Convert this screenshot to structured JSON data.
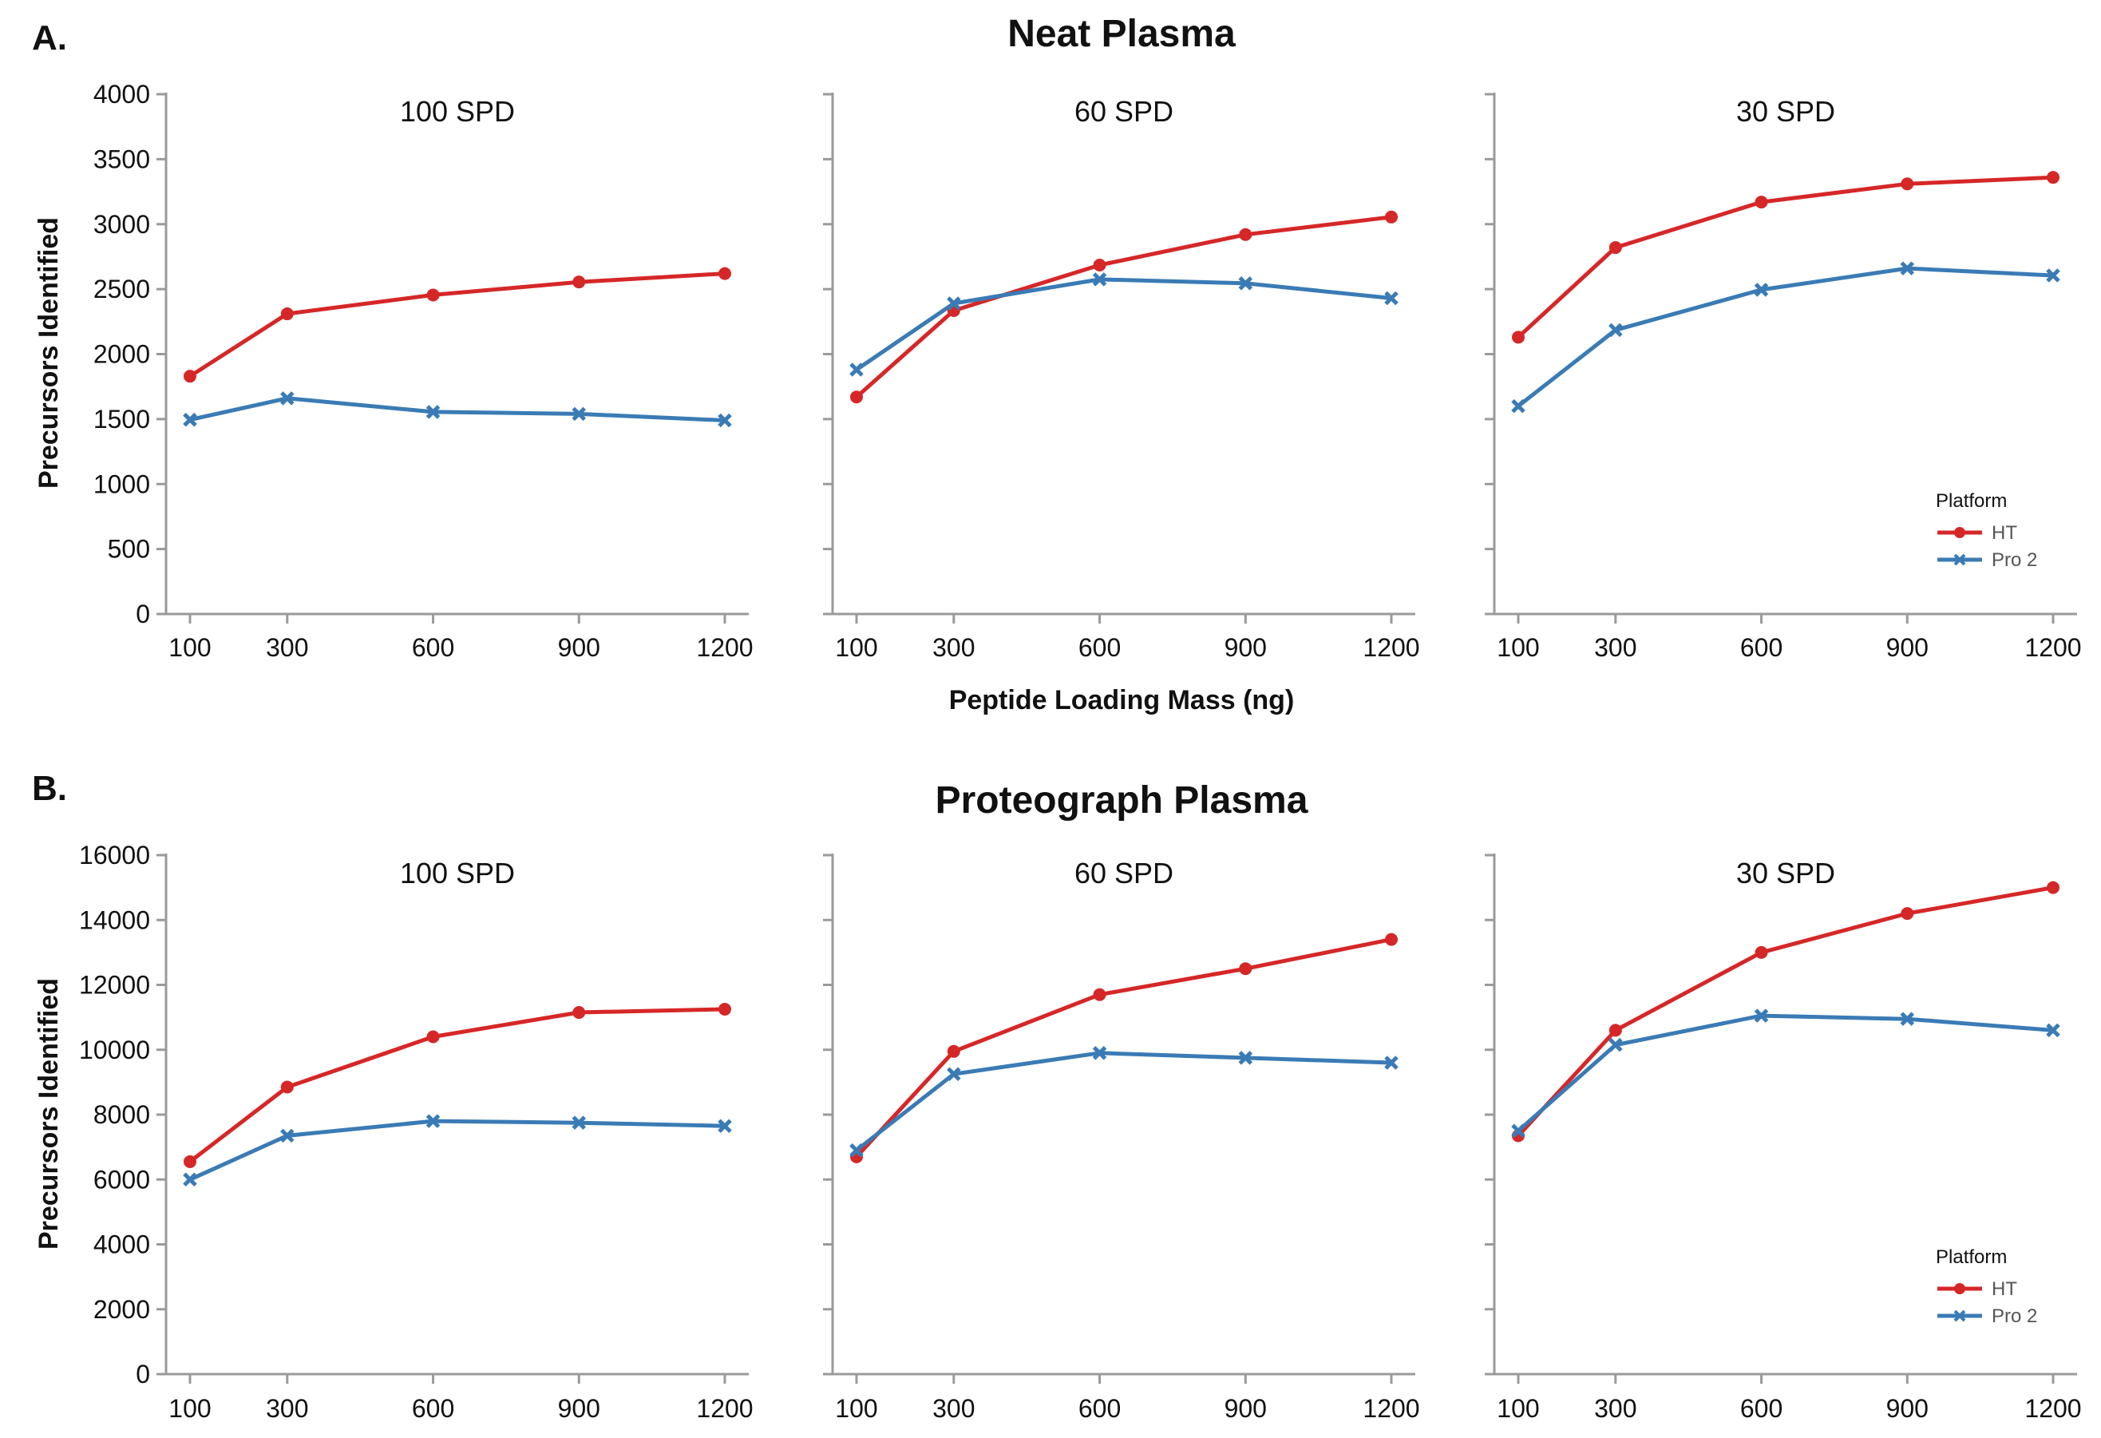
{
  "figure": {
    "panels": [
      {
        "id": "A",
        "letter": "A.",
        "title": "Neat Plasma"
      },
      {
        "id": "B",
        "letter": "B.",
        "title": "Proteograph Plasma"
      }
    ],
    "shared_xlabel": "Peptide Loading Mass (ng)",
    "legend": {
      "title": "Platform",
      "entries": [
        {
          "name": "HT",
          "color": "#d62728",
          "marker": "circle"
        },
        {
          "name": "Pro 2",
          "color": "#3a7bb5",
          "marker": "x"
        }
      ]
    }
  },
  "chart_data": [
    {
      "type": "line",
      "panel": "A",
      "title": "100 SPD",
      "xlabel": "",
      "ylabel": "Precursors Identified",
      "x": [
        100,
        300,
        600,
        900,
        1200
      ],
      "xticks": [
        "100",
        "300",
        "600",
        "900",
        "1200"
      ],
      "ylim": [
        0,
        4000
      ],
      "yticks": [
        "0",
        "500",
        "1000",
        "1500",
        "2000",
        "2500",
        "3000",
        "3500",
        "4000"
      ],
      "series": [
        {
          "name": "HT",
          "values": [
            1830,
            2310,
            2455,
            2555,
            2620
          ]
        },
        {
          "name": "Pro 2",
          "values": [
            1495,
            1660,
            1555,
            1540,
            1490
          ]
        }
      ]
    },
    {
      "type": "line",
      "panel": "A",
      "title": "60 SPD",
      "x": [
        100,
        300,
        600,
        900,
        1200
      ],
      "xticks": [
        "100",
        "300",
        "600",
        "900",
        "1200"
      ],
      "ylim": [
        0,
        4000
      ],
      "series": [
        {
          "name": "HT",
          "values": [
            1670,
            2335,
            2685,
            2920,
            3055
          ]
        },
        {
          "name": "Pro 2",
          "values": [
            1880,
            2390,
            2575,
            2545,
            2430
          ]
        }
      ]
    },
    {
      "type": "line",
      "panel": "A",
      "title": "30 SPD",
      "x": [
        100,
        300,
        600,
        900,
        1200
      ],
      "xticks": [
        "100",
        "300",
        "600",
        "900",
        "1200"
      ],
      "ylim": [
        0,
        4000
      ],
      "series": [
        {
          "name": "HT",
          "values": [
            2130,
            2820,
            3170,
            3310,
            3360
          ]
        },
        {
          "name": "Pro 2",
          "values": [
            1600,
            2185,
            2495,
            2660,
            2605
          ]
        }
      ]
    },
    {
      "type": "line",
      "panel": "B",
      "title": "100 SPD",
      "xlabel": "",
      "ylabel": "Precursors Identified",
      "x": [
        100,
        300,
        600,
        900,
        1200
      ],
      "xticks": [
        "100",
        "300",
        "600",
        "900",
        "1200"
      ],
      "ylim": [
        0,
        16000
      ],
      "yticks": [
        "0",
        "2000",
        "4000",
        "6000",
        "8000",
        "10000",
        "12000",
        "14000",
        "16000"
      ],
      "series": [
        {
          "name": "HT",
          "values": [
            6550,
            8850,
            10400,
            11150,
            11250
          ]
        },
        {
          "name": "Pro 2",
          "values": [
            6000,
            7350,
            7800,
            7750,
            7650
          ]
        }
      ]
    },
    {
      "type": "line",
      "panel": "B",
      "title": "60 SPD",
      "x": [
        100,
        300,
        600,
        900,
        1200
      ],
      "xticks": [
        "100",
        "300",
        "600",
        "900",
        "1200"
      ],
      "ylim": [
        0,
        16000
      ],
      "series": [
        {
          "name": "HT",
          "values": [
            6700,
            9950,
            11700,
            12500,
            13400
          ]
        },
        {
          "name": "Pro 2",
          "values": [
            6900,
            9250,
            9900,
            9750,
            9600
          ]
        }
      ]
    },
    {
      "type": "line",
      "panel": "B",
      "title": "30 SPD",
      "x": [
        100,
        300,
        600,
        900,
        1200
      ],
      "xticks": [
        "100",
        "300",
        "600",
        "900",
        "1200"
      ],
      "ylim": [
        0,
        16000
      ],
      "series": [
        {
          "name": "HT",
          "values": [
            7350,
            10600,
            13000,
            14200,
            15000
          ]
        },
        {
          "name": "Pro 2",
          "values": [
            7500,
            10150,
            11050,
            10950,
            10600
          ]
        }
      ]
    }
  ]
}
